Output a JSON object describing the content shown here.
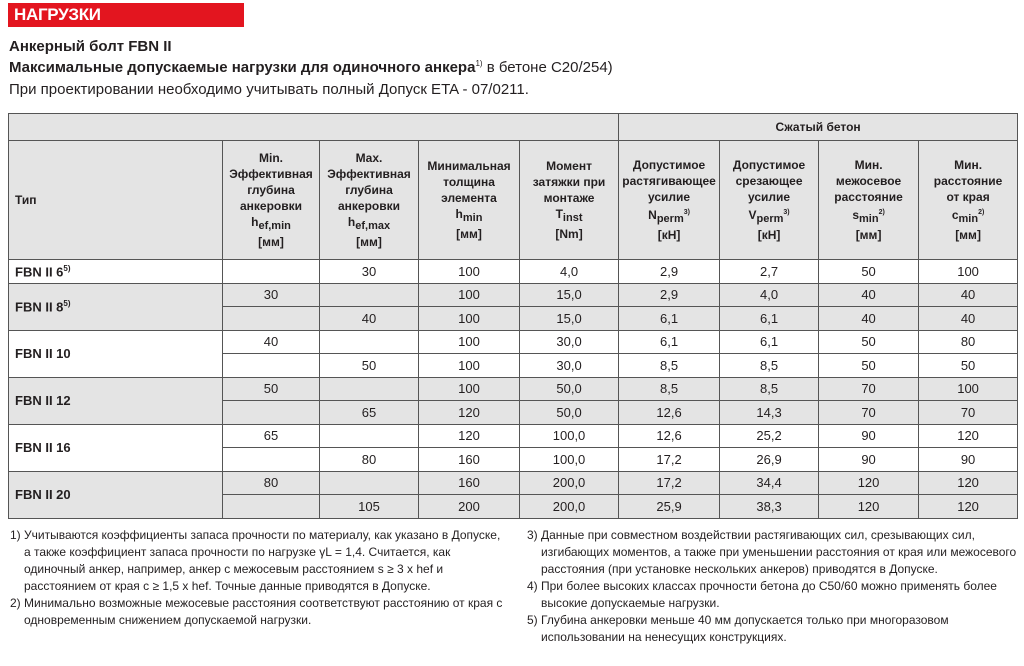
{
  "banner": "НАГРУЗКИ",
  "title1": "Анкерный болт FBN II",
  "title2": {
    "bold": "Максимальные допускаемые нагрузки для одиночного анкера",
    "sup": "1)",
    "normal": " в бетоне C20/254)"
  },
  "title3": "При проектировании необходимо учитывать полный Допуск ETA - 07/0211.",
  "table": {
    "group_header": "Сжатый бетон",
    "columns": [
      {
        "lines": [
          "Тип"
        ]
      },
      {
        "lines": [
          "Min.",
          "Эффективная",
          "глубина",
          "анкеровки"
        ],
        "sym": "h",
        "sub": "ef,min",
        "sup": "",
        "unit": "[мм]"
      },
      {
        "lines": [
          "Max.",
          "Эффективная",
          "глубина",
          "анкеровки"
        ],
        "sym": "h",
        "sub": "ef,max",
        "sup": "",
        "unit": "[мм]"
      },
      {
        "lines": [
          "Минимальная",
          "толщина",
          "элемента"
        ],
        "sym": "h",
        "sub": "min",
        "sup": "",
        "unit": "[мм]"
      },
      {
        "lines": [
          "Момент",
          "затяжки при",
          "монтаже"
        ],
        "sym": "T",
        "sub": "inst",
        "sup": "",
        "unit": "[Nm]"
      },
      {
        "lines": [
          "Допустимое",
          "растягивающее",
          "усилие"
        ],
        "sym": "N",
        "sub": "perm",
        "sup": "3)",
        "unit": "[кН]"
      },
      {
        "lines": [
          "Допустимое",
          "срезающее",
          "усилие"
        ],
        "sym": "V",
        "sub": "perm",
        "sup": "3)",
        "unit": "[кН]"
      },
      {
        "lines": [
          "Мин.",
          "межосевое",
          "расстояние"
        ],
        "sym": "s",
        "sub": "min",
        "sup": "2)",
        "unit": "[мм]"
      },
      {
        "lines": [
          "Мин.",
          "расстояние",
          "от края"
        ],
        "sym": "c",
        "sub": "min",
        "sup": "2)",
        "unit": "[мм]"
      }
    ],
    "groups": [
      {
        "type": "FBN II 6",
        "sup": "5)",
        "rows": [
          [
            "",
            "30",
            "100",
            "4,0",
            "2,9",
            "2,7",
            "50",
            "100"
          ]
        ]
      },
      {
        "type": "FBN II 8",
        "sup": "5)",
        "rows": [
          [
            "30",
            "",
            "100",
            "15,0",
            "2,9",
            "4,0",
            "40",
            "40"
          ],
          [
            "",
            "40",
            "100",
            "15,0",
            "6,1",
            "6,1",
            "40",
            "40"
          ]
        ]
      },
      {
        "type": "FBN II 10",
        "sup": "",
        "rows": [
          [
            "40",
            "",
            "100",
            "30,0",
            "6,1",
            "6,1",
            "50",
            "80"
          ],
          [
            "",
            "50",
            "100",
            "30,0",
            "8,5",
            "8,5",
            "50",
            "50"
          ]
        ]
      },
      {
        "type": "FBN II 12",
        "sup": "",
        "rows": [
          [
            "50",
            "",
            "100",
            "50,0",
            "8,5",
            "8,5",
            "70",
            "100"
          ],
          [
            "",
            "65",
            "120",
            "50,0",
            "12,6",
            "14,3",
            "70",
            "70"
          ]
        ]
      },
      {
        "type": "FBN II 16",
        "sup": "",
        "rows": [
          [
            "65",
            "",
            "120",
            "100,0",
            "12,6",
            "25,2",
            "90",
            "120"
          ],
          [
            "",
            "80",
            "160",
            "100,0",
            "17,2",
            "26,9",
            "90",
            "90"
          ]
        ]
      },
      {
        "type": "FBN II 20",
        "sup": "",
        "rows": [
          [
            "80",
            "",
            "160",
            "200,0",
            "17,2",
            "34,4",
            "120",
            "120"
          ],
          [
            "",
            "105",
            "200",
            "200,0",
            "25,9",
            "38,3",
            "120",
            "120"
          ]
        ]
      }
    ]
  },
  "notes_left": [
    "1) Учитываются коэффициенты запаса прочности по материалу, как указано в Допуске, а также коэффициент запаса прочности по нагрузке γL = 1,4. Считается, как одиночный анкер, например, анкер с межосевым расстоянием s ≥ 3 x hef и расстоянием от края c ≥ 1,5 x hef. Точные данные приводятся в Допуске.",
    "2) Минимально возможные межосевые расстояния соответствуют расстоянию от края с одновременным снижением допускаемой нагрузки."
  ],
  "notes_right": [
    "3) Данные при совместном воздействии растягивающих сил, срезывающих сил, изгибающих моментов, а также при уменьшении расстояния от края или межосевого расстояния (при установке нескольких анкеров) приводятся в Допуске.",
    "4) При более высоких классах прочности бетона до C50/60 можно применять более высокие допускаемые нагрузки.",
    "5) Глубина анкеровки меньше 40 мм допускается только при многоразовом использовании на ненесущих конструкциях."
  ]
}
